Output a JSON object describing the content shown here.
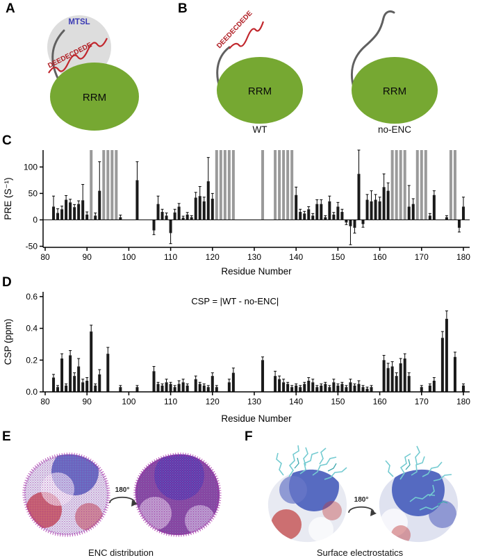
{
  "panels": {
    "a": {
      "label": "A",
      "mtsl": "MTSL",
      "sequence": "DEEDECDEDE",
      "rrm": "RRM"
    },
    "b": {
      "label": "B",
      "sequence": "DEEDECDEDE",
      "rrm": "RRM",
      "wt_caption": "WT",
      "noenc_caption": "no-ENC"
    },
    "c": {
      "label": "C"
    },
    "d": {
      "label": "D"
    },
    "e": {
      "label": "E",
      "caption": "ENC distribution",
      "rotation": "180°"
    },
    "f": {
      "label": "F",
      "caption": "Surface electrostatics",
      "rotation": "180°"
    }
  },
  "colors": {
    "rrm_green": "#76a832",
    "enc_red": "#c1272d",
    "mtsl_blue": "#3a3ab4",
    "bar_black": "#1a1a1a",
    "bar_gray": "#9a9a9a",
    "mesh_magenta": "#a82ba8",
    "sticks_cyan": "#74cbd1"
  },
  "chart_data": [
    {
      "id": "pre",
      "type": "bar",
      "title": "",
      "xlabel": "Residue Number",
      "ylabel": "PRE (S⁻¹)",
      "xlim": [
        79.5,
        181.5
      ],
      "ylim": [
        -52,
        132
      ],
      "xticks": [
        80,
        90,
        100,
        110,
        120,
        130,
        140,
        150,
        160,
        170,
        180
      ],
      "yticks": [
        -50,
        0,
        50,
        100
      ],
      "ytick_labels": [
        "-50",
        "0",
        "50",
        "100"
      ],
      "bar_color": "#1a1a1a",
      "gray_color": "#9a9a9a",
      "gray_bars": [
        91,
        94,
        95,
        96,
        97,
        121,
        122,
        123,
        124,
        125,
        132,
        135,
        136,
        137,
        138,
        139,
        163,
        164,
        165,
        166,
        169,
        170,
        171,
        177,
        178
      ],
      "bars": [
        [
          82,
          25,
          20
        ],
        [
          83,
          13,
          8
        ],
        [
          84,
          20,
          6
        ],
        [
          85,
          38,
          8
        ],
        [
          86,
          33,
          6
        ],
        [
          87,
          24,
          5
        ],
        [
          88,
          30,
          6
        ],
        [
          89,
          37,
          30
        ],
        [
          90,
          10,
          5
        ],
        [
          92,
          8,
          5
        ],
        [
          93,
          55,
          55
        ],
        [
          98,
          5,
          4
        ],
        [
          102,
          75,
          35
        ],
        [
          106,
          -20,
          8
        ],
        [
          107,
          30,
          15
        ],
        [
          108,
          15,
          5
        ],
        [
          109,
          8,
          5
        ],
        [
          110,
          -25,
          20
        ],
        [
          111,
          14,
          6
        ],
        [
          112,
          25,
          6
        ],
        [
          113,
          4,
          3
        ],
        [
          114,
          10,
          4
        ],
        [
          115,
          5,
          3
        ],
        [
          116,
          42,
          10
        ],
        [
          117,
          45,
          18
        ],
        [
          118,
          35,
          8
        ],
        [
          119,
          73,
          45
        ],
        [
          120,
          40,
          10
        ],
        [
          140,
          47,
          15
        ],
        [
          141,
          15,
          5
        ],
        [
          142,
          12,
          4
        ],
        [
          143,
          20,
          5
        ],
        [
          144,
          8,
          4
        ],
        [
          145,
          30,
          8
        ],
        [
          146,
          30,
          8
        ],
        [
          147,
          5,
          3
        ],
        [
          148,
          35,
          10
        ],
        [
          149,
          10,
          4
        ],
        [
          150,
          25,
          8
        ],
        [
          151,
          15,
          5
        ],
        [
          152,
          -5,
          4
        ],
        [
          153,
          -12,
          35
        ],
        [
          154,
          -15,
          10
        ],
        [
          155,
          87,
          45
        ],
        [
          156,
          -8,
          6
        ],
        [
          157,
          38,
          10
        ],
        [
          158,
          35,
          20
        ],
        [
          159,
          38,
          10
        ],
        [
          160,
          35,
          8
        ],
        [
          161,
          62,
          25
        ],
        [
          162,
          55,
          15
        ],
        [
          167,
          25,
          40
        ],
        [
          168,
          30,
          10
        ],
        [
          172,
          8,
          4
        ],
        [
          173,
          47,
          8
        ],
        [
          176,
          5,
          3
        ],
        [
          179,
          -15,
          8
        ],
        [
          180,
          25,
          18
        ]
      ]
    },
    {
      "id": "csp",
      "type": "bar",
      "title": "",
      "annotation": "CSP = |WT - no-ENC|",
      "xlabel": "Residue Number",
      "ylabel": "CSP (ppm)",
      "xlim": [
        79.5,
        181.5
      ],
      "ylim": [
        0,
        0.63
      ],
      "xticks": [
        80,
        90,
        100,
        110,
        120,
        130,
        140,
        150,
        160,
        170,
        180
      ],
      "yticks": [
        0,
        0.2,
        0.4,
        0.6
      ],
      "ytick_labels": [
        "0.0",
        "0.2",
        "0.4",
        "0.6"
      ],
      "bar_color": "#1a1a1a",
      "gray_color": "#9a9a9a",
      "gray_bars": [],
      "bars": [
        [
          82,
          0.09,
          0.02
        ],
        [
          83,
          0.03,
          0.01
        ],
        [
          84,
          0.21,
          0.03
        ],
        [
          85,
          0.04,
          0.01
        ],
        [
          86,
          0.23,
          0.03
        ],
        [
          87,
          0.1,
          0.02
        ],
        [
          88,
          0.16,
          0.05
        ],
        [
          89,
          0.06,
          0.02
        ],
        [
          90,
          0.07,
          0.02
        ],
        [
          91,
          0.38,
          0.04
        ],
        [
          92,
          0.04,
          0.01
        ],
        [
          93,
          0.11,
          0.03
        ],
        [
          95,
          0.24,
          0.04
        ],
        [
          98,
          0.03,
          0.01
        ],
        [
          102,
          0.03,
          0.01
        ],
        [
          106,
          0.13,
          0.03
        ],
        [
          107,
          0.05,
          0.01
        ],
        [
          108,
          0.04,
          0.01
        ],
        [
          109,
          0.06,
          0.02
        ],
        [
          110,
          0.05,
          0.01
        ],
        [
          111,
          0.03,
          0.01
        ],
        [
          112,
          0.05,
          0.02
        ],
        [
          113,
          0.06,
          0.02
        ],
        [
          114,
          0.04,
          0.01
        ],
        [
          116,
          0.08,
          0.02
        ],
        [
          117,
          0.05,
          0.01
        ],
        [
          118,
          0.04,
          0.01
        ],
        [
          119,
          0.03,
          0.01
        ],
        [
          120,
          0.1,
          0.02
        ],
        [
          121,
          0.03,
          0.01
        ],
        [
          124,
          0.06,
          0.02
        ],
        [
          125,
          0.12,
          0.03
        ],
        [
          132,
          0.2,
          0.02
        ],
        [
          135,
          0.1,
          0.03
        ],
        [
          136,
          0.08,
          0.02
        ],
        [
          137,
          0.06,
          0.02
        ],
        [
          138,
          0.05,
          0.01
        ],
        [
          139,
          0.03,
          0.01
        ],
        [
          140,
          0.04,
          0.01
        ],
        [
          141,
          0.03,
          0.01
        ],
        [
          142,
          0.05,
          0.01
        ],
        [
          143,
          0.07,
          0.02
        ],
        [
          144,
          0.06,
          0.02
        ],
        [
          145,
          0.03,
          0.01
        ],
        [
          146,
          0.04,
          0.01
        ],
        [
          147,
          0.05,
          0.01
        ],
        [
          148,
          0.03,
          0.01
        ],
        [
          149,
          0.06,
          0.02
        ],
        [
          150,
          0.04,
          0.01
        ],
        [
          151,
          0.05,
          0.01
        ],
        [
          152,
          0.03,
          0.01
        ],
        [
          153,
          0.06,
          0.02
        ],
        [
          154,
          0.04,
          0.01
        ],
        [
          155,
          0.05,
          0.02
        ],
        [
          156,
          0.03,
          0.01
        ],
        [
          157,
          0.02,
          0.01
        ],
        [
          158,
          0.03,
          0.01
        ],
        [
          161,
          0.2,
          0.03
        ],
        [
          162,
          0.15,
          0.03
        ],
        [
          163,
          0.16,
          0.03
        ],
        [
          164,
          0.1,
          0.02
        ],
        [
          165,
          0.18,
          0.03
        ],
        [
          166,
          0.21,
          0.03
        ],
        [
          167,
          0.1,
          0.02
        ],
        [
          170,
          0.03,
          0.01
        ],
        [
          172,
          0.04,
          0.01
        ],
        [
          173,
          0.07,
          0.02
        ],
        [
          175,
          0.34,
          0.04
        ],
        [
          176,
          0.46,
          0.05
        ],
        [
          178,
          0.22,
          0.03
        ],
        [
          180,
          0.04,
          0.01
        ]
      ]
    }
  ]
}
